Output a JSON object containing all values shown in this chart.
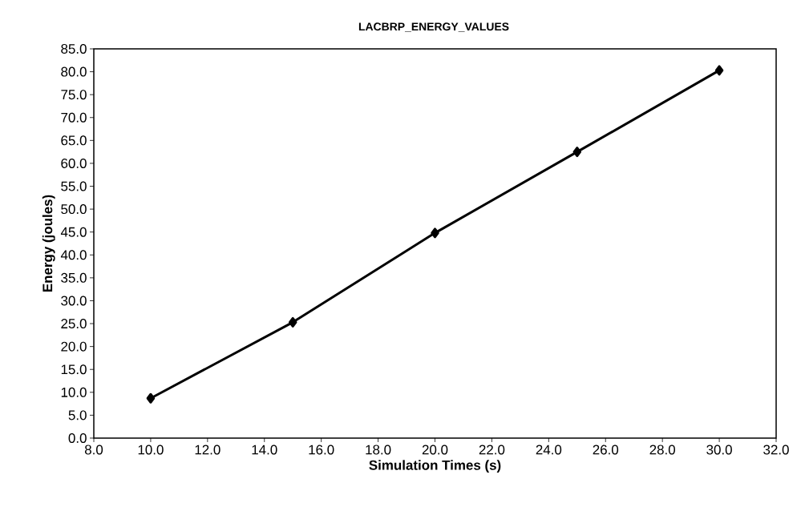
{
  "chart_data": {
    "type": "line",
    "title": "LACBRP_ENERGY_VALUES",
    "xlabel": "Simulation Times (s)",
    "ylabel": "Energy (joules)",
    "x": [
      10,
      15,
      20,
      25,
      30
    ],
    "series": [
      {
        "color": "#000000",
        "values": [
          8.7,
          25.3,
          44.8,
          62.5,
          80.3
        ]
      }
    ],
    "marker": "diamond",
    "line_style": "solid",
    "grid": false,
    "xlim": [
      8,
      32
    ],
    "ylim": [
      0,
      85
    ],
    "xticks": [
      {
        "value": 8,
        "label": "8.0"
      },
      {
        "value": 10,
        "label": "10.0"
      },
      {
        "value": 12,
        "label": "12.0"
      },
      {
        "value": 14,
        "label": "14.0"
      },
      {
        "value": 16,
        "label": "16.0"
      },
      {
        "value": 18,
        "label": "18.0"
      },
      {
        "value": 20,
        "label": "20.0"
      },
      {
        "value": 22,
        "label": "22.0"
      },
      {
        "value": 24,
        "label": "24.0"
      },
      {
        "value": 26,
        "label": "26.0"
      },
      {
        "value": 28,
        "label": "28.0"
      },
      {
        "value": 30,
        "label": "30.0"
      },
      {
        "value": 32,
        "label": "32.0"
      }
    ],
    "yticks": [
      {
        "value": 0,
        "label": "0.0"
      },
      {
        "value": 5,
        "label": "5.0"
      },
      {
        "value": 10,
        "label": "10.0"
      },
      {
        "value": 15,
        "label": "15.0"
      },
      {
        "value": 20,
        "label": "20.0"
      },
      {
        "value": 25,
        "label": "25.0"
      },
      {
        "value": 30,
        "label": "30.0"
      },
      {
        "value": 35,
        "label": "35.0"
      },
      {
        "value": 40,
        "label": "40.0"
      },
      {
        "value": 45,
        "label": "45.0"
      },
      {
        "value": 50,
        "label": "50.0"
      },
      {
        "value": 55,
        "label": "55.0"
      },
      {
        "value": 60,
        "label": "60.0"
      },
      {
        "value": 65,
        "label": "65.0"
      },
      {
        "value": 70,
        "label": "70.0"
      },
      {
        "value": 75,
        "label": "75.0"
      },
      {
        "value": 80,
        "label": "80.0"
      },
      {
        "value": 85,
        "label": "85.0"
      }
    ]
  }
}
